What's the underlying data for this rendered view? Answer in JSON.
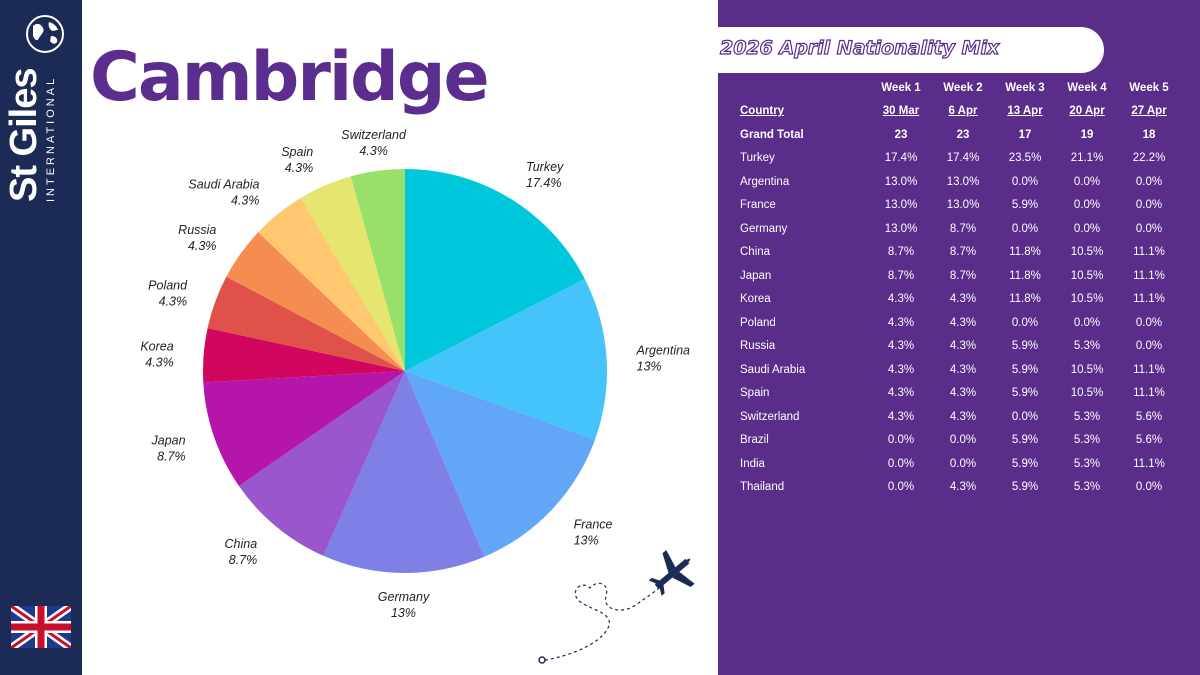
{
  "brand": {
    "name": "St Giles",
    "sub": "INTERNATIONAL"
  },
  "title": "Cambridge",
  "panel": {
    "heading": "2026 April Nationality Mix",
    "weeks": [
      "Week 1",
      "Week 2",
      "Week 3",
      "Week 4",
      "Week 5"
    ],
    "country_label": "Country",
    "dates": [
      "30 Mar",
      "6 Apr",
      "13 Apr",
      "20 Apr",
      "27 Apr"
    ],
    "grand_total_label": "Grand Total",
    "grand_totals": [
      "23",
      "23",
      "17",
      "19",
      "18"
    ],
    "rows": [
      {
        "country": "Turkey",
        "values": [
          "17.4%",
          "17.4%",
          "23.5%",
          "21.1%",
          "22.2%"
        ]
      },
      {
        "country": "Argentina",
        "values": [
          "13.0%",
          "13.0%",
          "0.0%",
          "0.0%",
          "0.0%"
        ]
      },
      {
        "country": "France",
        "values": [
          "13.0%",
          "13.0%",
          "5.9%",
          "0.0%",
          "0.0%"
        ]
      },
      {
        "country": "Germany",
        "values": [
          "13.0%",
          "8.7%",
          "0.0%",
          "0.0%",
          "0.0%"
        ]
      },
      {
        "country": "China",
        "values": [
          "8.7%",
          "8.7%",
          "11.8%",
          "10.5%",
          "11.1%"
        ]
      },
      {
        "country": "Japan",
        "values": [
          "8.7%",
          "8.7%",
          "11.8%",
          "10.5%",
          "11.1%"
        ]
      },
      {
        "country": "Korea",
        "values": [
          "4.3%",
          "4.3%",
          "11.8%",
          "10.5%",
          "11.1%"
        ]
      },
      {
        "country": "Poland",
        "values": [
          "4.3%",
          "4.3%",
          "0.0%",
          "0.0%",
          "0.0%"
        ]
      },
      {
        "country": "Russia",
        "values": [
          "4.3%",
          "4.3%",
          "5.9%",
          "5.3%",
          "0.0%"
        ]
      },
      {
        "country": "Saudi Arabia",
        "values": [
          "4.3%",
          "4.3%",
          "5.9%",
          "10.5%",
          "11.1%"
        ]
      },
      {
        "country": "Spain",
        "values": [
          "4.3%",
          "4.3%",
          "5.9%",
          "10.5%",
          "11.1%"
        ]
      },
      {
        "country": "Switzerland",
        "values": [
          "4.3%",
          "4.3%",
          "0.0%",
          "5.3%",
          "5.6%"
        ]
      },
      {
        "country": "Brazil",
        "values": [
          "0.0%",
          "0.0%",
          "5.9%",
          "5.3%",
          "5.6%"
        ]
      },
      {
        "country": "India",
        "values": [
          "0.0%",
          "0.0%",
          "5.9%",
          "5.3%",
          "11.1%"
        ]
      },
      {
        "country": "Thailand",
        "values": [
          "0.0%",
          "4.3%",
          "5.9%",
          "5.3%",
          "0.0%"
        ]
      }
    ]
  },
  "colors": {
    "sidebar": "#1b2b55",
    "title": "#5b2d8e",
    "panel": "#5b2d8a"
  },
  "icons": [
    "globe-icon",
    "uk-flag-icon",
    "airplane-icon"
  ],
  "chart_data": {
    "type": "pie",
    "categories": [
      "Turkey",
      "Argentina",
      "France",
      "Germany",
      "China",
      "Japan",
      "Korea",
      "Poland",
      "Russia",
      "Saudi Arabia",
      "Spain",
      "Switzerland"
    ],
    "values": [
      17.4,
      13,
      13,
      13,
      8.7,
      8.7,
      4.3,
      4.3,
      4.3,
      4.3,
      4.3,
      4.3
    ],
    "labels": [
      "17.4%",
      "13%",
      "13%",
      "13%",
      "8.7%",
      "8.7%",
      "4.3%",
      "4.3%",
      "4.3%",
      "4.3%",
      "4.3%",
      "4.3%"
    ],
    "colors": [
      "#00c8dc",
      "#45c3fb",
      "#62a6f8",
      "#7f80e6",
      "#9a56cc",
      "#b515a8",
      "#d1065e",
      "#e0514a",
      "#f58c50",
      "#ffc870",
      "#e5e570",
      "#99e06a"
    ],
    "start": "12 o'clock",
    "direction": "clockwise"
  }
}
